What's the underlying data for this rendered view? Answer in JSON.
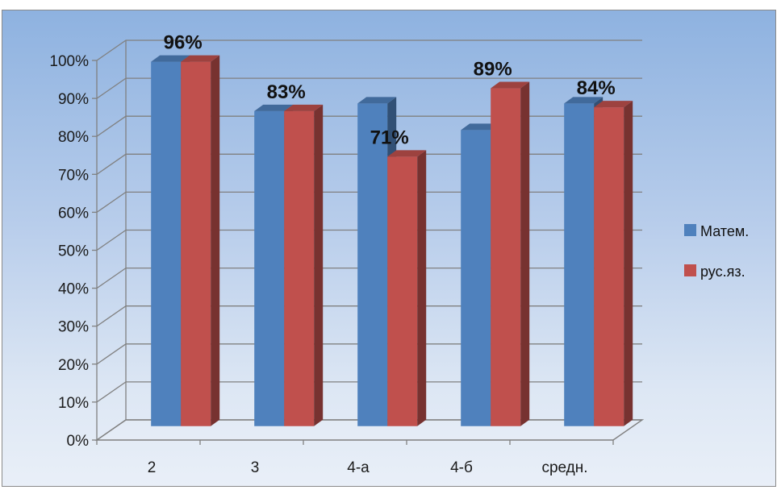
{
  "chart_data": {
    "type": "bar",
    "categories": [
      "2",
      "3",
      "4-а",
      "4-б",
      "средн."
    ],
    "series": [
      {
        "name": "Матем.",
        "values": [
          96,
          83,
          85,
          78,
          85
        ],
        "color": "#4f81bd"
      },
      {
        "name": "рус.яз.",
        "values": [
          96,
          83,
          71,
          89,
          84
        ],
        "color": "#c0504d"
      }
    ],
    "data_labels": {
      "series_index": 1,
      "texts": [
        "96%",
        "83%",
        "71%",
        "89%",
        "84%"
      ]
    },
    "y_ticks": [
      "0%",
      "10%",
      "20%",
      "30%",
      "40%",
      "50%",
      "60%",
      "70%",
      "80%",
      "90%",
      "100%"
    ],
    "ylim": [
      0,
      100
    ],
    "grid": true,
    "legend": "right",
    "three_d": true
  }
}
